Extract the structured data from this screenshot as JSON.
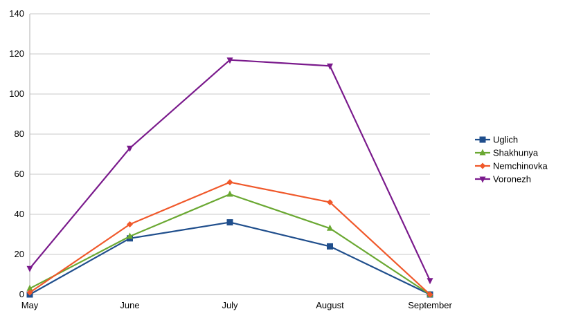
{
  "chart_data": {
    "type": "line",
    "categories": [
      "May",
      "June",
      "July",
      "August",
      "September"
    ],
    "ylim": [
      0,
      140
    ],
    "yticks": [
      0,
      20,
      40,
      60,
      80,
      100,
      120,
      140
    ],
    "grid": true,
    "legend_position": "right",
    "series": [
      {
        "name": "Uglich",
        "color": "#1f4e8c",
        "marker": "square",
        "values": [
          0,
          28,
          36,
          24,
          0
        ]
      },
      {
        "name": "Shakhunya",
        "color": "#6aa832",
        "marker": "triangle-up",
        "values": [
          3,
          29,
          50,
          33,
          0
        ]
      },
      {
        "name": "Nemchinovka",
        "color": "#f0582a",
        "marker": "diamond",
        "values": [
          1,
          35,
          56,
          46,
          0
        ]
      },
      {
        "name": "Voronezh",
        "color": "#7a1a8c",
        "marker": "triangle-down",
        "values": [
          13,
          73,
          117,
          114,
          7
        ]
      }
    ]
  }
}
